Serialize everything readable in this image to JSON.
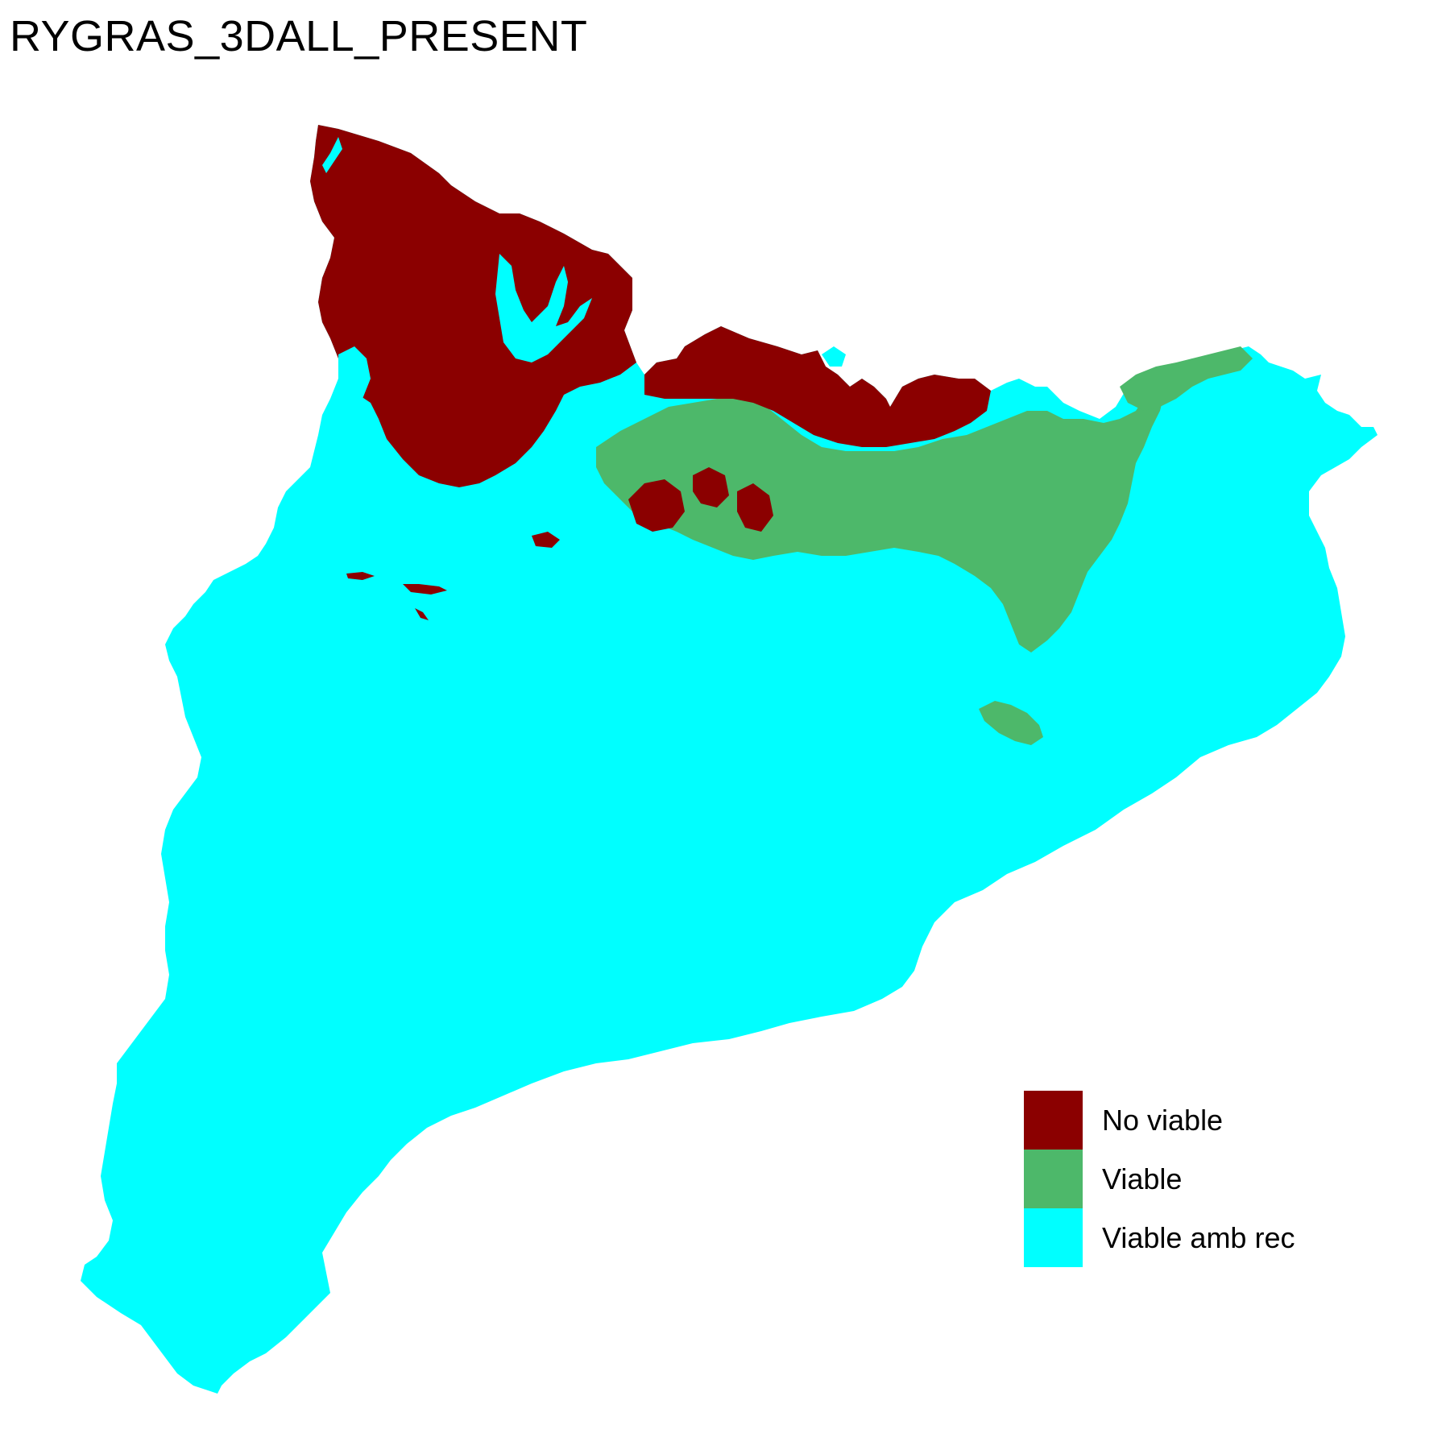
{
  "title": "RYGRAS_3DALL_PRESENT",
  "legend": {
    "placement": "bottom-right",
    "items": [
      {
        "label": "No viable",
        "color": "#8B0000"
      },
      {
        "label": "Viable",
        "color": "#4DB86A"
      },
      {
        "label": "Viable amb rec",
        "color": "#00FFFF"
      }
    ]
  }
}
